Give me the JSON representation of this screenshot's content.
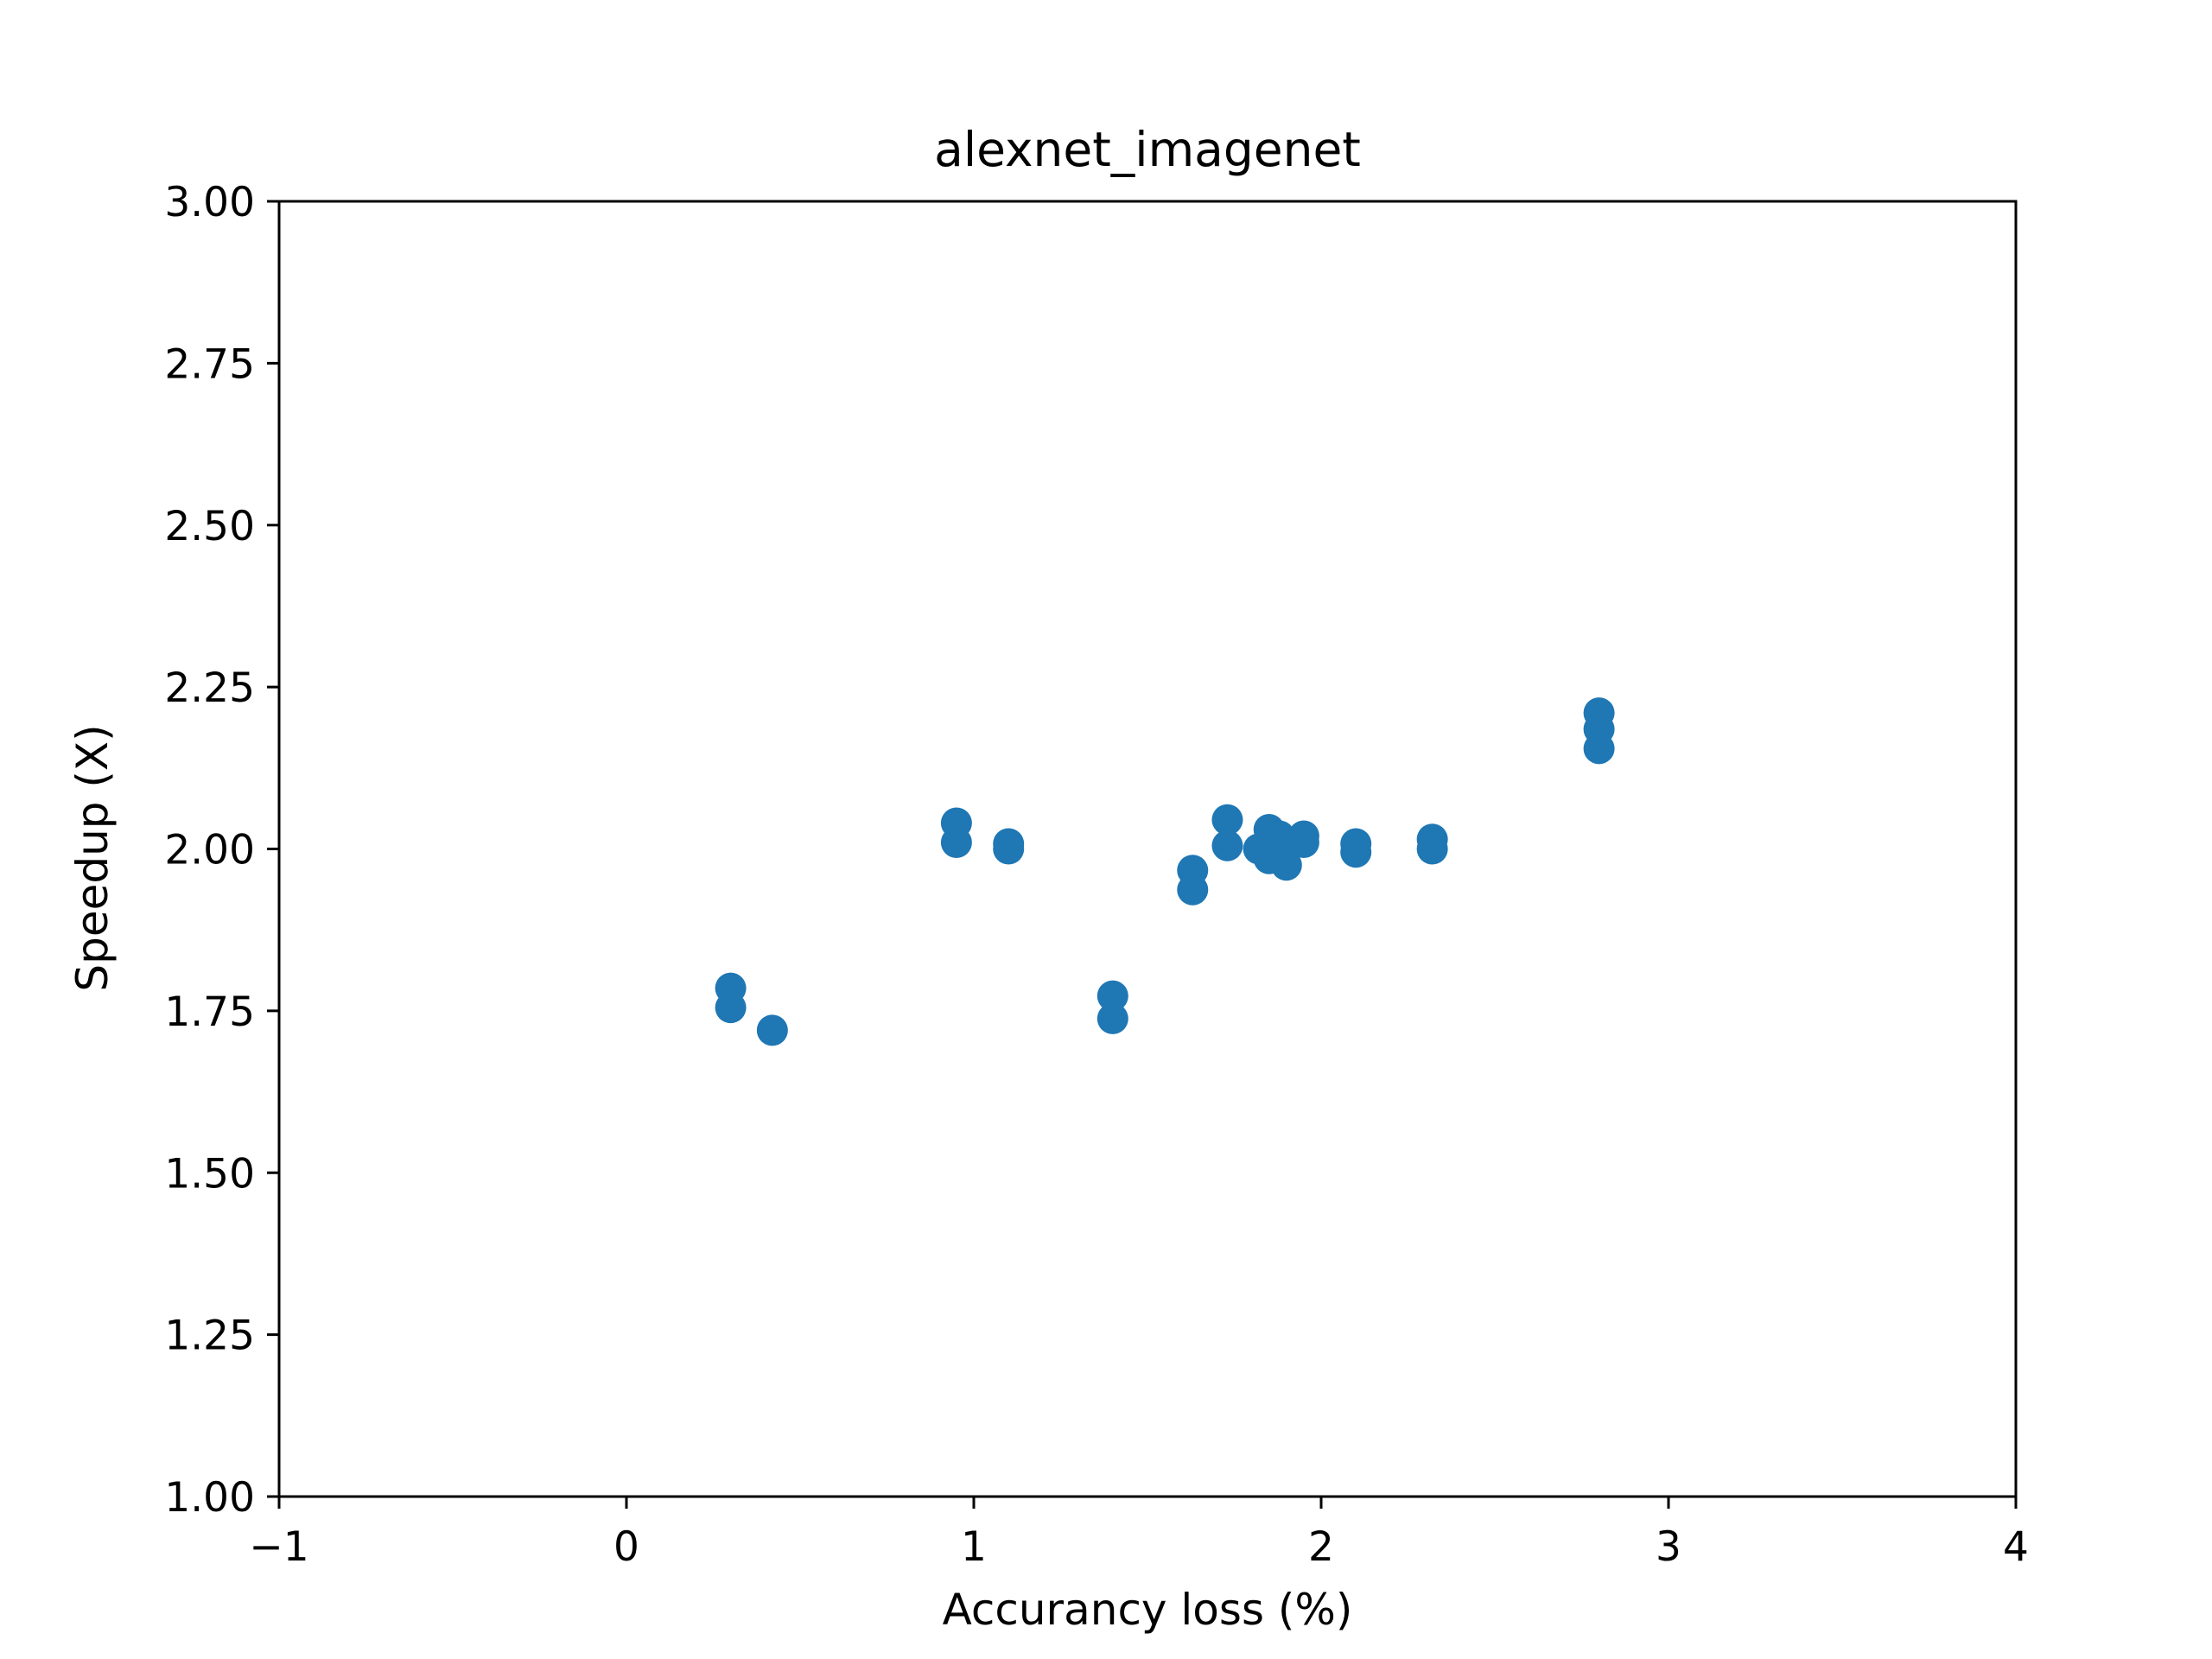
{
  "chart_data": {
    "type": "scatter",
    "title": "alexnet_imagenet",
    "xlabel": "Accurancy loss (%)",
    "ylabel": "Speedup (X)",
    "xlim": [
      -1,
      4
    ],
    "ylim": [
      1.0,
      3.0
    ],
    "xticks": [
      -1,
      0,
      1,
      2,
      3,
      4
    ],
    "xtick_labels": [
      "−1",
      "0",
      "1",
      "2",
      "3",
      "4"
    ],
    "yticks": [
      1.0,
      1.25,
      1.5,
      1.75,
      2.0,
      2.25,
      2.5,
      2.75,
      3.0
    ],
    "ytick_labels": [
      "1.00",
      "1.25",
      "1.50",
      "1.75",
      "2.00",
      "2.25",
      "2.50",
      "2.75",
      "3.00"
    ],
    "grid": false,
    "marker_color": "#1f77b4",
    "points": [
      {
        "x": 0.3,
        "y": 1.785
      },
      {
        "x": 0.3,
        "y": 1.755
      },
      {
        "x": 0.42,
        "y": 1.72
      },
      {
        "x": 0.95,
        "y": 2.04
      },
      {
        "x": 0.95,
        "y": 2.01
      },
      {
        "x": 1.1,
        "y": 2.008
      },
      {
        "x": 1.1,
        "y": 2.0
      },
      {
        "x": 1.4,
        "y": 1.773
      },
      {
        "x": 1.4,
        "y": 1.738
      },
      {
        "x": 1.63,
        "y": 1.967
      },
      {
        "x": 1.63,
        "y": 1.937
      },
      {
        "x": 1.73,
        "y": 2.045
      },
      {
        "x": 1.73,
        "y": 2.005
      },
      {
        "x": 1.82,
        "y": 2.0
      },
      {
        "x": 1.85,
        "y": 2.03
      },
      {
        "x": 1.85,
        "y": 1.985
      },
      {
        "x": 1.88,
        "y": 2.02
      },
      {
        "x": 1.88,
        "y": 1.997
      },
      {
        "x": 1.9,
        "y": 1.975
      },
      {
        "x": 1.95,
        "y": 2.02
      },
      {
        "x": 1.95,
        "y": 2.01
      },
      {
        "x": 2.1,
        "y": 2.008
      },
      {
        "x": 2.1,
        "y": 1.995
      },
      {
        "x": 2.32,
        "y": 2.015
      },
      {
        "x": 2.32,
        "y": 2.0
      },
      {
        "x": 2.8,
        "y": 2.21
      },
      {
        "x": 2.8,
        "y": 2.185
      },
      {
        "x": 2.8,
        "y": 2.155
      }
    ]
  }
}
